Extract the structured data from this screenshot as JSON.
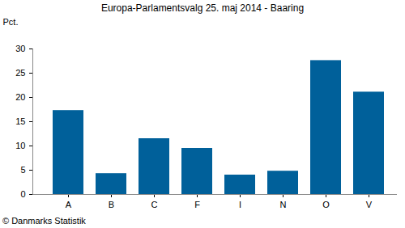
{
  "chart_data": {
    "type": "bar",
    "title": "Europa-Parlamentsvalg 25. maj 2014 - Baaring",
    "y_label": "Pct.",
    "caption": "© Danmarks Statistik",
    "categories": [
      "A",
      "B",
      "C",
      "F",
      "I",
      "N",
      "O",
      "V"
    ],
    "values": [
      17.3,
      4.3,
      11.5,
      9.5,
      4.0,
      4.8,
      27.6,
      21.1
    ],
    "color": "#00609a",
    "ylim": [
      0,
      30
    ],
    "yticks": [
      0,
      5,
      10,
      15,
      20,
      25,
      30
    ],
    "grid": false
  }
}
